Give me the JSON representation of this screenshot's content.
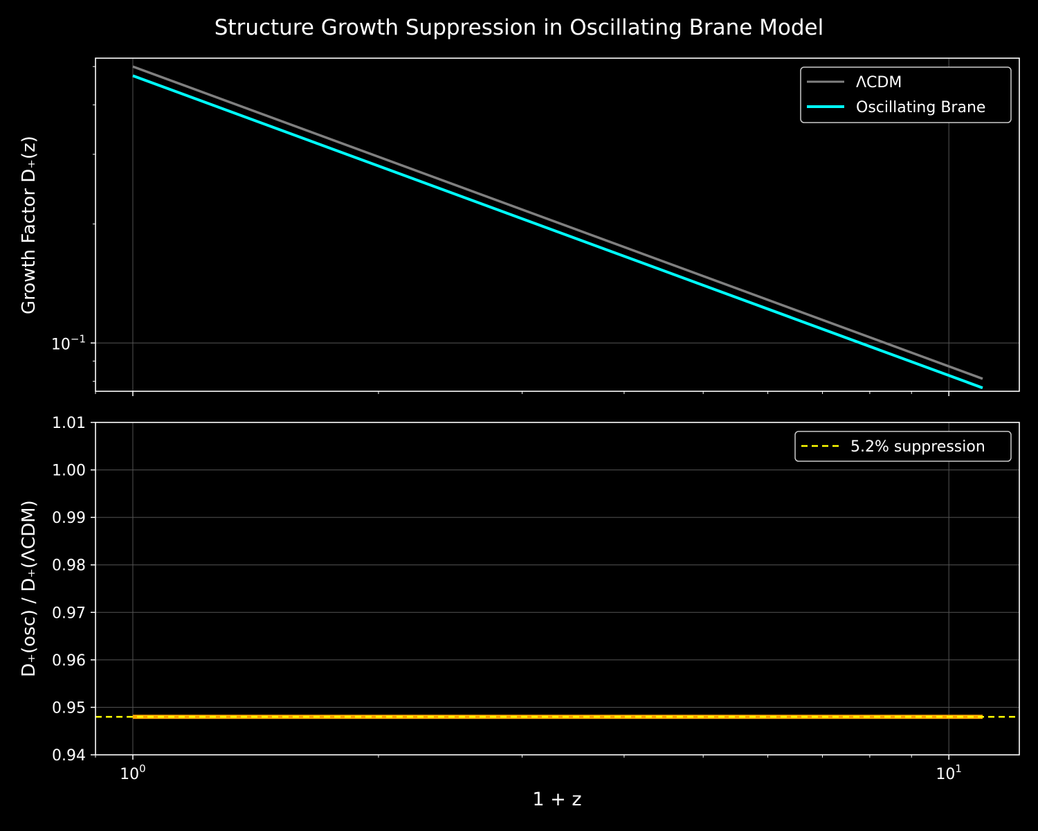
{
  "title": "Structure Growth Suppression in Oscillating Brane Model",
  "colors": {
    "background": "#000000",
    "axes": "#ffffff",
    "grid": "#555555",
    "lcdm": "#808080",
    "osc": "#00ffff",
    "suppression": "#ffff00",
    "ratio": "#ffa500"
  },
  "chart_data": [
    {
      "type": "line",
      "xscale": "log",
      "yscale": "log",
      "xlabel": "",
      "ylabel": "Growth Factor D₊(z)",
      "xlim": [
        0.9,
        12.2
      ],
      "ylim": [
        0.0755,
        0.525
      ],
      "yticks": [
        {
          "value": 0.1,
          "base": "10",
          "exp": "−1"
        }
      ],
      "grid": true,
      "legend": "top-right",
      "series": [
        {
          "name": "ΛCDM",
          "x": [
            1,
            11
          ],
          "y": [
            0.5,
            0.0812
          ]
        },
        {
          "name": "Oscillating Brane",
          "x": [
            1,
            11
          ],
          "y": [
            0.474,
            0.077
          ]
        }
      ]
    },
    {
      "type": "line",
      "xscale": "log",
      "xlabel": "1 + z",
      "ylabel": "D₊(osc) / D₊(ΛCDM)",
      "xlim": [
        0.9,
        12.2
      ],
      "ylim": [
        0.94,
        1.01
      ],
      "xticks": [
        {
          "value": 1,
          "base": "10",
          "exp": "0"
        },
        {
          "value": 10,
          "base": "10",
          "exp": "1"
        }
      ],
      "yticks": [
        {
          "value": 0.94,
          "label": "0.94"
        },
        {
          "value": 0.95,
          "label": "0.95"
        },
        {
          "value": 0.96,
          "label": "0.96"
        },
        {
          "value": 0.97,
          "label": "0.97"
        },
        {
          "value": 0.98,
          "label": "0.98"
        },
        {
          "value": 0.99,
          "label": "0.99"
        },
        {
          "value": 1.0,
          "label": "1.00"
        },
        {
          "value": 1.01,
          "label": "1.01"
        }
      ],
      "grid": true,
      "legend": "top-right",
      "series": [
        {
          "x": [
            1,
            11
          ],
          "y": [
            0.948,
            0.948
          ]
        }
      ],
      "reference_line": {
        "name": "5.2% suppression",
        "y": 0.948,
        "style": "dashed"
      }
    }
  ]
}
